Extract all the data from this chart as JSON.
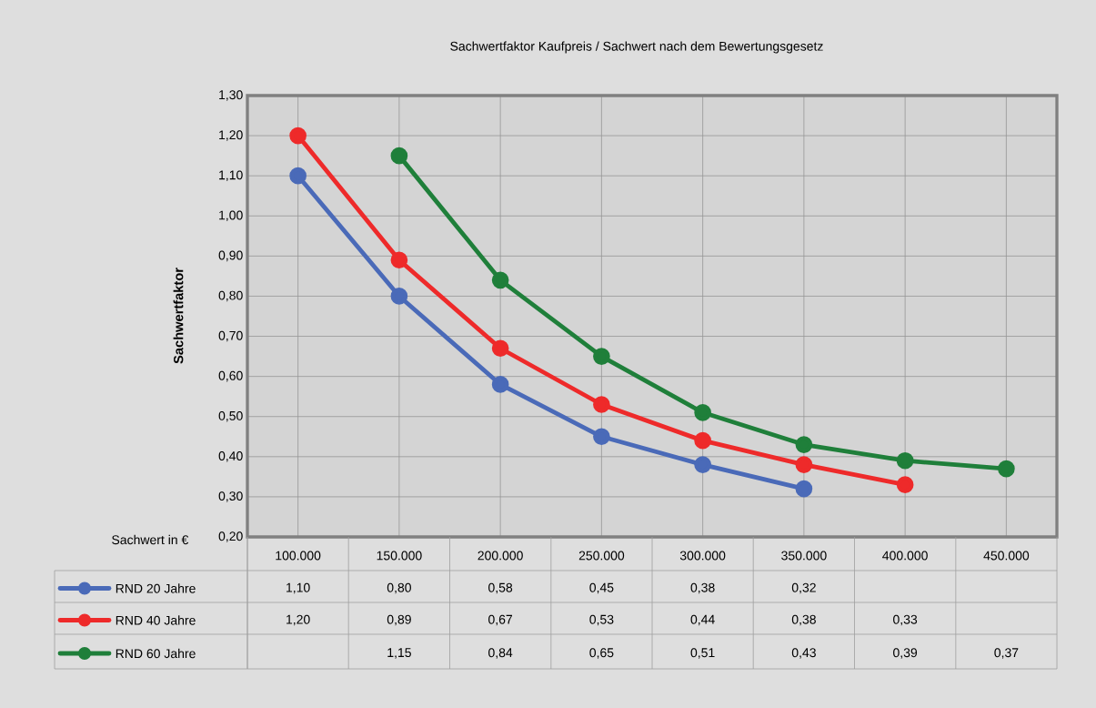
{
  "chart_data": {
    "type": "line",
    "title": "Sachwertfaktor Kaufpreis /  Sachwert nach dem Bewertungsgesetz",
    "xlabel": "Sachwert in €",
    "ylabel": "Sachwertfaktor",
    "categories": [
      "100.000",
      "150.000",
      "200.000",
      "250.000",
      "300.000",
      "350.000",
      "400.000",
      "450.000"
    ],
    "series": [
      {
        "name": "RND 20 Jahre",
        "color": "#4a6ab8",
        "values": [
          1.1,
          0.8,
          0.58,
          0.45,
          0.38,
          0.32,
          null,
          null
        ],
        "value_labels": [
          "1,10",
          "0,80",
          "0,58",
          "0,45",
          "0,38",
          "0,32",
          null,
          null
        ]
      },
      {
        "name": "RND 40 Jahre",
        "color": "#ee2a2a",
        "values": [
          1.2,
          0.89,
          0.67,
          0.53,
          0.44,
          0.38,
          0.33,
          null
        ],
        "value_labels": [
          "1,20",
          "0,89",
          "0,67",
          "0,53",
          "0,44",
          "0,38",
          "0,33",
          null
        ]
      },
      {
        "name": "RND 60 Jahre",
        "color": "#1f7f3a",
        "values": [
          null,
          1.15,
          0.84,
          0.65,
          0.51,
          0.43,
          0.39,
          0.37
        ],
        "value_labels": [
          null,
          "1,15",
          "0,84",
          "0,65",
          "0,51",
          "0,43",
          "0,39",
          "0,37"
        ]
      }
    ],
    "ylim": [
      0.2,
      1.3
    ],
    "yticks": [
      {
        "value": 0.2,
        "label": "0,20"
      },
      {
        "value": 0.3,
        "label": "0,30"
      },
      {
        "value": 0.4,
        "label": "0,40"
      },
      {
        "value": 0.5,
        "label": "0,50"
      },
      {
        "value": 0.6,
        "label": "0,60"
      },
      {
        "value": 0.7,
        "label": "0,70"
      },
      {
        "value": 0.8,
        "label": "0,80"
      },
      {
        "value": 0.9,
        "label": "0,90"
      },
      {
        "value": 1.0,
        "label": "1,00"
      },
      {
        "value": 1.1,
        "label": "1,10"
      },
      {
        "value": 1.2,
        "label": "1,20"
      },
      {
        "value": 1.3,
        "label": "1,30"
      }
    ],
    "grid": true,
    "legend": "bottom",
    "marker": "circle",
    "line_style": "solid"
  }
}
